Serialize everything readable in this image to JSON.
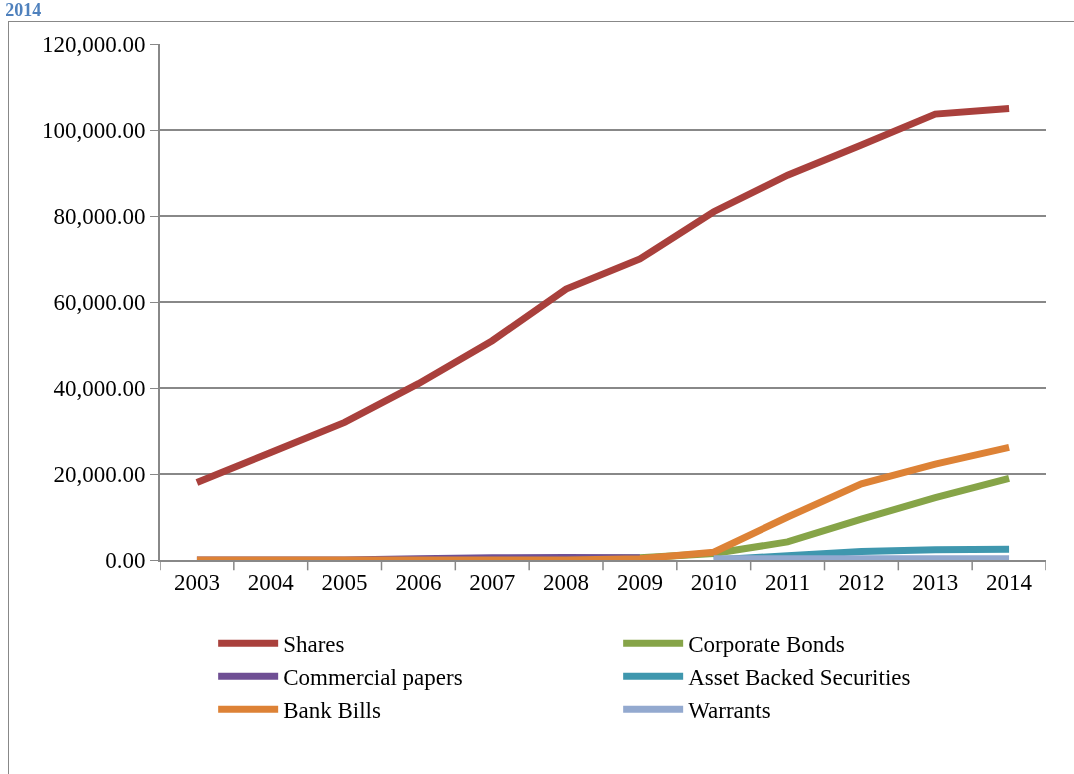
{
  "chart_data": {
    "type": "line",
    "title": "2014",
    "categories": [
      "2003",
      "2004",
      "2005",
      "2006",
      "2007",
      "2008",
      "2009",
      "2010",
      "2011",
      "2012",
      "2013",
      "2014"
    ],
    "series": [
      {
        "name": "Shares",
        "color": "#a9403c",
        "values": [
          18000,
          25000,
          32000,
          41000,
          51000,
          63000,
          70000,
          81000,
          89500,
          96500,
          103700,
          105000
        ]
      },
      {
        "name": "Corporate Bonds",
        "color": "#86a448",
        "values": [
          null,
          null,
          null,
          null,
          null,
          300,
          500,
          1500,
          4200,
          9500,
          14500,
          19000
        ]
      },
      {
        "name": "Commercial papers",
        "color": "#6f4f94",
        "values": [
          0,
          0,
          0,
          300,
          500,
          600,
          500,
          null,
          null,
          null,
          null,
          null
        ]
      },
      {
        "name": "Asset Backed Securities",
        "color": "#3f97ae",
        "values": [
          null,
          null,
          null,
          null,
          null,
          null,
          null,
          0,
          1000,
          2000,
          2400,
          2500
        ]
      },
      {
        "name": "Bank Bills",
        "color": "#dd8236",
        "values": [
          0,
          0,
          0,
          0,
          0,
          0,
          300,
          1800,
          10000,
          17700,
          22300,
          26200
        ]
      },
      {
        "name": "Warrants",
        "color": "#93a9cf",
        "values": [
          null,
          null,
          null,
          null,
          null,
          null,
          null,
          300,
          300,
          300,
          300,
          300
        ]
      }
    ],
    "ylim": [
      0,
      120000
    ],
    "yticks": [
      {
        "value": 0,
        "label": "0.00"
      },
      {
        "value": 20000,
        "label": "20,000.00"
      },
      {
        "value": 40000,
        "label": "40,000.00"
      },
      {
        "value": 60000,
        "label": "60,000.00"
      },
      {
        "value": 80000,
        "label": "80,000.00"
      },
      {
        "value": 100000,
        "label": "100,000.00"
      },
      {
        "value": 120000,
        "label": "120,000.00"
      }
    ],
    "grid": "y",
    "legend": "bottom",
    "marker": "none",
    "line_style": "solid"
  }
}
